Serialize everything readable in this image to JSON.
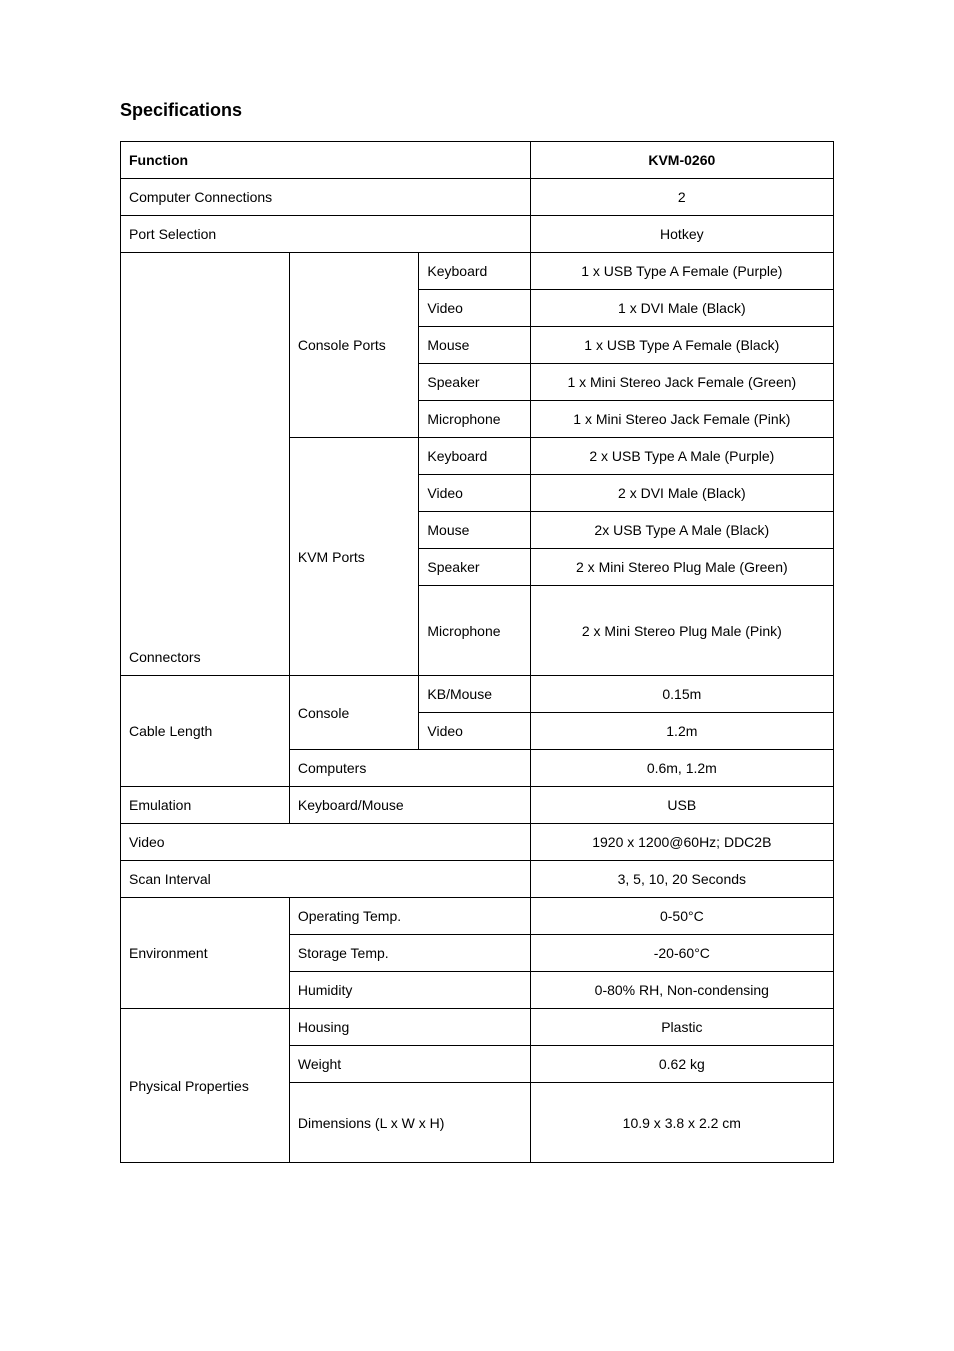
{
  "title": "Specifications",
  "header": {
    "function": "Function",
    "model": "KVM-0260"
  },
  "rows": {
    "computerConnections": {
      "label": "Computer Connections",
      "value": "2"
    },
    "portSelection": {
      "label": "Port Selection",
      "value": "Hotkey"
    },
    "connectors": {
      "label": "Connectors",
      "console": {
        "label": "Console Ports",
        "keyboard": {
          "label": "Keyboard",
          "value": "1 x USB Type A Female (Purple)"
        },
        "video": {
          "label": "Video",
          "value": "1 x DVI Male (Black)"
        },
        "mouse": {
          "label": "Mouse",
          "value": "1 x USB Type A Female (Black)"
        },
        "speaker": {
          "label": "Speaker",
          "value": "1 x Mini Stereo Jack Female (Green)"
        },
        "microphone": {
          "label": "Microphone",
          "value": "1 x Mini Stereo Jack Female (Pink)"
        }
      },
      "kvm": {
        "label": "KVM Ports",
        "keyboard": {
          "label": "Keyboard",
          "value": "2 x USB  Type A Male (Purple)"
        },
        "video": {
          "label": "Video",
          "value": "2 x DVI Male (Black)"
        },
        "mouse": {
          "label": "Mouse",
          "value": "2x USB Type A Male (Black)"
        },
        "speaker": {
          "label": "Speaker",
          "value": "2 x Mini Stereo Plug Male (Green)"
        },
        "microphone": {
          "label": "Microphone",
          "value": "2 x Mini Stereo Plug Male (Pink)"
        }
      }
    },
    "cableLength": {
      "label": "Cable Length",
      "console": {
        "label": "Console",
        "kbMouse": {
          "label": "KB/Mouse",
          "value": "0.15m"
        },
        "video": {
          "label": "Video",
          "value": "1.2m"
        }
      },
      "computers": {
        "label": "Computers",
        "value": "0.6m, 1.2m"
      }
    },
    "emulation": {
      "label": "Emulation",
      "sub": "Keyboard/Mouse",
      "value": "USB"
    },
    "video": {
      "label": "Video",
      "value": "1920 x 1200@60Hz; DDC2B"
    },
    "scanInterval": {
      "label": "Scan Interval",
      "value": "3, 5, 10, 20 Seconds"
    },
    "environment": {
      "label": "Environment",
      "operating": {
        "label": "Operating Temp.",
        "value": "0-50°C"
      },
      "storage": {
        "label": "Storage Temp.",
        "value": "-20-60°C"
      },
      "humidity": {
        "label": "Humidity",
        "value": "0-80% RH, Non-condensing"
      }
    },
    "physical": {
      "label": "Physical Properties",
      "housing": {
        "label": "Housing",
        "value": "Plastic"
      },
      "weight": {
        "label": "Weight",
        "value": "0.62 kg"
      },
      "dimensions": {
        "label": "Dimensions (L x W x H)",
        "value": "10.9 x 3.8 x 2.2 cm"
      }
    }
  }
}
